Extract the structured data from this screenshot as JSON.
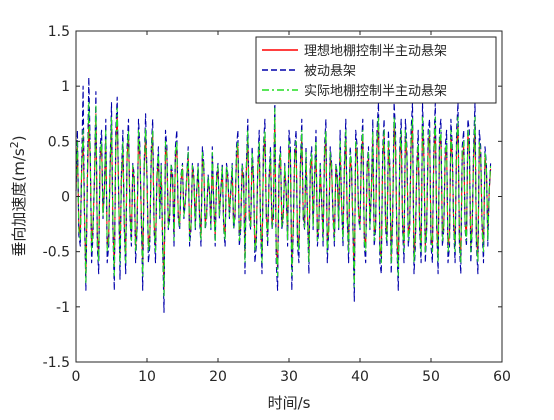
{
  "chart_data": {
    "type": "line",
    "title": "",
    "xlabel": "时间/s",
    "ylabel_prefix": "垂向加速度(m/s",
    "ylabel_sup": "2",
    "ylabel_suffix": ")",
    "xlim": [
      0,
      60
    ],
    "ylim": [
      -1.5,
      1.5
    ],
    "xticks": [
      0,
      10,
      20,
      30,
      40,
      50,
      60
    ],
    "yticks": [
      -1.5,
      -1,
      -0.5,
      0,
      0.5,
      1,
      1.5
    ],
    "ytick_labels": [
      "-1.5",
      "-1",
      "-0.5",
      "0",
      "0.5",
      "1",
      "1.5"
    ],
    "grid": false,
    "legend_position": "top-right",
    "sample_step": 0.2,
    "series": [
      {
        "name": "理想地棚控制半主动悬架",
        "color": "#ff0000",
        "line_style": "solid",
        "values": [
          0.05,
          0.45,
          -0.25,
          -0.35,
          0.25,
          0.55,
          -0.15,
          -0.72,
          0.15,
          0.65,
          0.35,
          -0.45,
          -0.25,
          0.15,
          0.75,
          -0.35,
          -0.55,
          0.35,
          0.45,
          -0.15,
          0.05,
          0.55,
          -0.45,
          -0.35,
          0.25,
          0.65,
          -0.25,
          -0.65,
          0.45,
          0.75,
          0.05,
          -0.55,
          0.15,
          0.45,
          -0.25,
          -0.55,
          0.35,
          0.55,
          -0.15,
          -0.35,
          0.25,
          0.15,
          -0.45,
          -0.25,
          0.55,
          0.35,
          -0.15,
          -0.65,
          0.25,
          0.55,
          0.15,
          -0.45,
          -0.35,
          0.35,
          0.55,
          -0.25,
          -0.45,
          0.15,
          0.35,
          -0.15,
          0.25,
          -0.35,
          -0.85,
          0.45,
          0.35,
          -0.25,
          -0.15,
          0.25,
          0.15,
          -0.35,
          0.35,
          0.45,
          -0.15,
          -0.25,
          0.15,
          0.25,
          -0.15,
          -0.05,
          0.15,
          0.35,
          -0.35,
          -0.25,
          0.25,
          0.15,
          -0.25,
          0.05,
          0.25,
          -0.15,
          -0.35,
          0.35,
          0.25,
          -0.25,
          -0.15,
          0.15,
          0.05,
          -0.25,
          0.35,
          -0.05,
          -0.35,
          0.15,
          0.25,
          -0.15,
          0.05,
          0.25,
          -0.25,
          -0.35,
          0.25,
          0.15,
          -0.15,
          0.05,
          0.25,
          -0.25,
          -0.15,
          0.35,
          0.45,
          -0.35,
          -0.25,
          0.25,
          0.15,
          -0.55,
          0.25,
          0.55,
          -0.15,
          -0.25,
          0.35,
          0.15,
          -0.45,
          -0.35,
          0.25,
          0.45,
          -0.25,
          -0.55,
          0.35,
          0.55,
          -0.15,
          -0.35,
          0.15,
          0.35,
          -0.25,
          -0.15,
          0.75,
          -0.45,
          -0.65,
          0.25,
          0.35,
          -0.25,
          -0.15,
          0.25,
          0.05,
          -0.35,
          0.45,
          0.35,
          -0.65,
          -0.25,
          0.35,
          0.45,
          -0.35,
          -0.45,
          0.25,
          0.55,
          -0.15,
          -0.25,
          0.35,
          -0.15,
          -0.55,
          0.25,
          0.35,
          -0.25,
          0.15,
          0.45,
          -0.35,
          -0.25,
          0.25,
          -0.05,
          -0.35,
          0.35,
          0.55,
          -0.45,
          -0.25,
          0.35,
          0.25,
          -0.15,
          -0.35,
          0.25,
          0.15,
          -0.25,
          0.45,
          -0.05,
          -0.35,
          0.25,
          0.55,
          -0.15,
          -0.45,
          0.35,
          0.25,
          -0.25,
          -0.75,
          0.45,
          0.35,
          -0.15,
          -0.25,
          0.35,
          0.55,
          -0.35,
          -0.45,
          0.25,
          0.35,
          -0.25,
          0.05,
          0.55,
          -0.35,
          -0.25,
          0.45,
          0.65,
          -0.45,
          -0.55,
          0.35,
          0.55,
          -0.25,
          -0.35,
          0.45,
          0.25,
          -0.55,
          -0.15,
          0.65,
          0.45,
          -0.35,
          -0.65,
          0.35,
          0.55,
          -0.25,
          -0.45,
          0.55,
          0.35,
          -0.35,
          -0.25,
          0.45,
          0.65,
          -0.55,
          -0.35,
          0.25,
          0.45,
          -0.25,
          -0.45,
          0.65,
          0.35,
          -0.45,
          -0.25,
          0.45,
          0.55,
          -0.35,
          -0.45,
          0.35,
          0.65,
          -0.25,
          -0.55,
          0.45,
          0.55,
          -0.35,
          -0.25,
          0.35,
          0.45,
          -0.45,
          -0.35,
          0.55,
          0.35,
          -0.25,
          -0.45,
          0.45,
          0.65,
          -0.35,
          -0.55,
          0.35,
          0.45,
          -0.25,
          -0.35,
          0.55,
          0.45,
          -0.45,
          -0.25,
          0.35,
          0.65,
          -0.35,
          -0.55,
          0.45,
          0.35,
          -0.25,
          -0.45,
          0.35,
          0.25,
          -0.35,
          0.05,
          0.25
        ]
      },
      {
        "name": "被动悬架",
        "color": "#0000aa",
        "line_style": "dash",
        "values": [
          0.05,
          0.6,
          -0.35,
          -0.45,
          0.3,
          1.0,
          -0.2,
          -0.85,
          0.2,
          1.08,
          0.45,
          -0.6,
          -0.35,
          0.2,
          0.95,
          -0.45,
          -0.7,
          0.45,
          0.6,
          -0.2,
          0.05,
          0.7,
          -0.6,
          -0.45,
          0.3,
          0.85,
          -0.3,
          -0.85,
          0.6,
          0.9,
          0.05,
          -0.75,
          0.2,
          0.6,
          -0.3,
          -0.7,
          0.45,
          0.7,
          -0.2,
          -0.45,
          0.3,
          0.2,
          -0.6,
          -0.3,
          0.7,
          0.45,
          -0.2,
          -0.85,
          0.3,
          0.75,
          0.2,
          -0.6,
          -0.45,
          0.45,
          0.7,
          -0.3,
          -0.6,
          0.2,
          0.45,
          -0.2,
          0.3,
          -0.45,
          -1.05,
          0.6,
          0.45,
          -0.3,
          -0.2,
          0.3,
          0.2,
          -0.45,
          0.45,
          0.6,
          -0.2,
          -0.3,
          0.2,
          0.3,
          -0.2,
          -0.05,
          0.2,
          0.45,
          -0.45,
          -0.3,
          0.3,
          0.2,
          -0.3,
          0.05,
          0.3,
          -0.2,
          -0.45,
          0.45,
          0.3,
          -0.3,
          -0.2,
          0.2,
          0.05,
          -0.3,
          0.45,
          -0.05,
          -0.45,
          0.2,
          0.3,
          -0.2,
          0.05,
          0.3,
          -0.3,
          -0.45,
          0.3,
          0.2,
          -0.2,
          0.05,
          0.3,
          -0.3,
          -0.2,
          0.45,
          0.6,
          -0.45,
          -0.3,
          0.3,
          0.2,
          -0.7,
          0.3,
          0.7,
          -0.2,
          -0.3,
          0.45,
          0.2,
          -0.6,
          -0.45,
          0.3,
          0.6,
          -0.3,
          -0.7,
          0.45,
          0.7,
          -0.2,
          -0.45,
          0.2,
          0.45,
          -0.3,
          -0.2,
          0.92,
          -0.6,
          -0.85,
          0.3,
          0.45,
          -0.3,
          -0.2,
          0.3,
          0.05,
          -0.45,
          0.6,
          0.45,
          -0.85,
          -0.3,
          0.45,
          0.6,
          -0.45,
          -0.6,
          0.3,
          0.7,
          -0.2,
          -0.3,
          0.45,
          -0.2,
          -0.7,
          0.3,
          0.45,
          -0.3,
          0.2,
          0.6,
          -0.45,
          -0.3,
          0.3,
          -0.05,
          -0.45,
          0.45,
          0.7,
          -0.6,
          -0.3,
          0.45,
          0.3,
          -0.2,
          -0.45,
          0.3,
          0.2,
          -0.3,
          0.6,
          -0.05,
          -0.45,
          0.3,
          0.7,
          -0.2,
          -0.6,
          0.45,
          0.3,
          -0.3,
          -0.95,
          0.6,
          0.45,
          -0.2,
          -0.3,
          0.45,
          0.7,
          -0.45,
          -0.6,
          0.3,
          0.45,
          -0.3,
          0.05,
          0.7,
          -0.45,
          -0.3,
          0.6,
          0.85,
          -0.6,
          -0.7,
          0.45,
          0.7,
          -0.3,
          -0.45,
          0.6,
          0.3,
          -0.7,
          -0.2,
          0.85,
          0.6,
          -0.45,
          -0.85,
          0.45,
          0.7,
          -0.3,
          -0.6,
          0.7,
          0.45,
          -0.45,
          -0.3,
          0.6,
          0.85,
          -0.7,
          -0.45,
          0.3,
          0.6,
          -0.3,
          -0.6,
          0.85,
          0.45,
          -0.6,
          -0.3,
          0.6,
          0.7,
          -0.45,
          -0.6,
          0.45,
          0.85,
          -0.3,
          -0.7,
          0.6,
          0.7,
          -0.45,
          -0.3,
          0.45,
          0.6,
          -0.6,
          -0.45,
          0.7,
          0.45,
          -0.3,
          -0.6,
          0.6,
          0.85,
          -0.45,
          -0.7,
          0.45,
          0.6,
          -0.3,
          -0.45,
          0.7,
          0.6,
          -0.6,
          -0.3,
          0.45,
          0.85,
          -0.45,
          -0.7,
          0.6,
          0.45,
          -0.3,
          -0.6,
          0.45,
          0.3,
          -0.45,
          0.05,
          0.3
        ]
      },
      {
        "name": "实际地棚控制半主动悬架",
        "color": "#22dd22",
        "line_style": "dashdot",
        "values": [
          0.05,
          0.5,
          -0.3,
          -0.4,
          0.28,
          0.6,
          -0.18,
          -0.78,
          0.18,
          0.85,
          0.4,
          -0.5,
          -0.3,
          0.18,
          0.82,
          -0.4,
          -0.6,
          0.4,
          0.5,
          -0.18,
          0.05,
          0.6,
          -0.5,
          -0.4,
          0.28,
          0.72,
          -0.28,
          -0.72,
          0.5,
          0.8,
          0.05,
          -0.62,
          0.18,
          0.5,
          -0.28,
          -0.6,
          0.4,
          0.6,
          -0.18,
          -0.4,
          0.28,
          0.18,
          -0.5,
          -0.28,
          0.6,
          0.4,
          -0.18,
          -0.72,
          0.28,
          0.62,
          0.18,
          -0.5,
          -0.4,
          0.4,
          0.6,
          -0.28,
          -0.5,
          0.18,
          0.4,
          -0.18,
          0.28,
          -0.4,
          -0.9,
          0.5,
          0.4,
          -0.28,
          -0.18,
          0.28,
          0.18,
          -0.4,
          0.4,
          0.5,
          -0.18,
          -0.28,
          0.18,
          0.28,
          -0.18,
          -0.05,
          0.18,
          0.4,
          -0.4,
          -0.28,
          0.28,
          0.18,
          -0.28,
          0.05,
          0.28,
          -0.18,
          -0.4,
          0.4,
          0.28,
          -0.28,
          -0.18,
          0.18,
          0.05,
          -0.28,
          0.4,
          -0.05,
          -0.4,
          0.18,
          0.28,
          -0.18,
          0.05,
          0.28,
          -0.28,
          -0.4,
          0.28,
          0.18,
          -0.18,
          0.05,
          0.28,
          -0.28,
          -0.18,
          0.4,
          0.5,
          -0.4,
          -0.28,
          0.28,
          0.18,
          -0.6,
          0.28,
          0.6,
          -0.18,
          -0.28,
          0.4,
          0.18,
          -0.5,
          -0.4,
          0.28,
          0.5,
          -0.28,
          -0.6,
          0.4,
          0.6,
          -0.18,
          -0.4,
          0.18,
          0.4,
          -0.28,
          -0.18,
          0.8,
          -0.5,
          -0.72,
          0.28,
          0.4,
          -0.28,
          -0.18,
          0.28,
          0.05,
          -0.4,
          0.5,
          0.4,
          -0.72,
          -0.28,
          0.4,
          0.5,
          -0.4,
          -0.5,
          0.28,
          0.6,
          -0.18,
          -0.28,
          0.4,
          -0.18,
          -0.6,
          0.28,
          0.4,
          -0.28,
          0.18,
          0.5,
          -0.4,
          -0.28,
          0.28,
          -0.05,
          -0.4,
          0.4,
          0.6,
          -0.5,
          -0.28,
          0.4,
          0.28,
          -0.18,
          -0.4,
          0.28,
          0.18,
          -0.28,
          0.5,
          -0.05,
          -0.4,
          0.28,
          0.6,
          -0.18,
          -0.5,
          0.4,
          0.28,
          -0.28,
          -0.82,
          0.5,
          0.4,
          -0.18,
          -0.28,
          0.4,
          0.6,
          -0.4,
          -0.5,
          0.28,
          0.4,
          -0.28,
          0.05,
          0.6,
          -0.4,
          -0.28,
          0.5,
          0.72,
          -0.5,
          -0.6,
          0.4,
          0.6,
          -0.28,
          -0.4,
          0.5,
          0.28,
          -0.6,
          -0.18,
          0.72,
          0.5,
          -0.4,
          -0.72,
          0.4,
          0.6,
          -0.28,
          -0.5,
          0.6,
          0.4,
          -0.4,
          -0.28,
          0.5,
          0.72,
          -0.6,
          -0.4,
          0.28,
          0.5,
          -0.28,
          -0.5,
          0.72,
          0.4,
          -0.5,
          -0.28,
          0.5,
          0.6,
          -0.4,
          -0.5,
          0.4,
          0.72,
          -0.28,
          -0.6,
          0.5,
          0.6,
          -0.4,
          -0.28,
          0.4,
          0.5,
          -0.5,
          -0.4,
          0.6,
          0.4,
          -0.28,
          -0.5,
          0.5,
          0.72,
          -0.4,
          -0.6,
          0.4,
          0.5,
          -0.28,
          -0.4,
          0.6,
          0.5,
          -0.5,
          -0.28,
          0.4,
          0.72,
          -0.4,
          -0.6,
          0.5,
          0.4,
          -0.28,
          -0.5,
          0.4,
          0.28,
          -0.4,
          0.05,
          0.28
        ]
      }
    ]
  }
}
